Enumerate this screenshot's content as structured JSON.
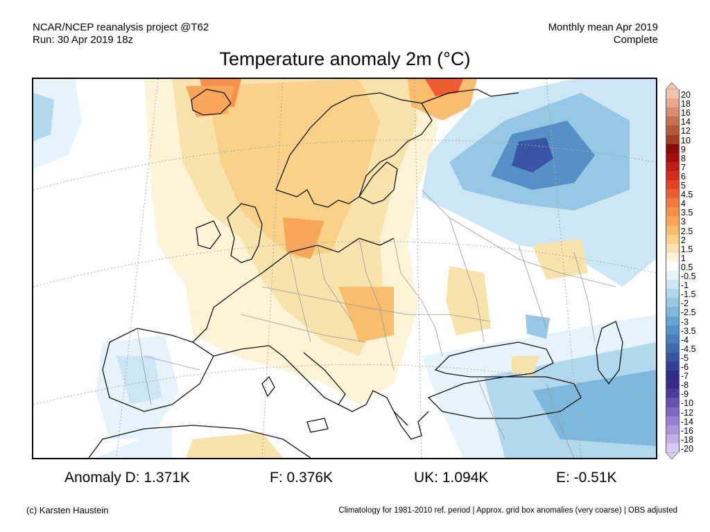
{
  "header": {
    "left_line1": "NCAR/NCEP reanalysis project @T62",
    "left_line2": "Run: 30 Apr 2019 18z",
    "right_line1": "Monthly mean Apr 2019",
    "right_line2": "Complete"
  },
  "title": "Temperature anomaly 2m (°C)",
  "colorbar": {
    "labels": [
      "20",
      "18",
      "16",
      "14",
      "12",
      "10",
      "9",
      "8",
      "7",
      "6",
      "5",
      "4.5",
      "4",
      "3.5",
      "3",
      "2.5",
      "2",
      "1.5",
      "1",
      "0.5",
      "-0.5",
      "-1",
      "-1.5",
      "-2",
      "-2.5",
      "-3",
      "-3.5",
      "-4",
      "-4.5",
      "-5",
      "-6",
      "-7",
      "-8",
      "-9",
      "-10",
      "-12",
      "-14",
      "-16",
      "-18",
      "-20"
    ],
    "colors": [
      "#f2c4b0",
      "#e8a98f",
      "#d98b6e",
      "#c7704f",
      "#b45a38",
      "#9e3f22",
      "#8b0a0a",
      "#a80d0d",
      "#c41a1a",
      "#d92a22",
      "#e6402a",
      "#ef5b33",
      "#f4773f",
      "#f7904b",
      "#f8a65a",
      "#f9bd6e",
      "#f9d189",
      "#f9e3ac",
      "#fdf3d6",
      "#ffffff",
      "#e6f3fb",
      "#cde6f5",
      "#b2d8ee",
      "#96c8e6",
      "#7db7dc",
      "#67a4d1",
      "#5591c6",
      "#4a7ebd",
      "#4169b0",
      "#3a55a3",
      "#344096",
      "#2f2d8a",
      "#3b2a8c",
      "#4f3a9c",
      "#6650b0",
      "#7e68c2",
      "#977fd2",
      "#ad96de",
      "#c3afe8",
      "#dacbf2"
    ]
  },
  "stats": {
    "anomaly_d": "Anomaly D: 1.371K",
    "anomaly_f": "F: 0.376K",
    "anomaly_uk": "UK: 1.094K",
    "anomaly_e": "E: -0.51K"
  },
  "footer": {
    "left": "(c) Karsten Haustein",
    "right": "Climatology for 1981-2010 ref. period | Approx. grid box anomalies (very coarse) | OBS adjusted"
  }
}
